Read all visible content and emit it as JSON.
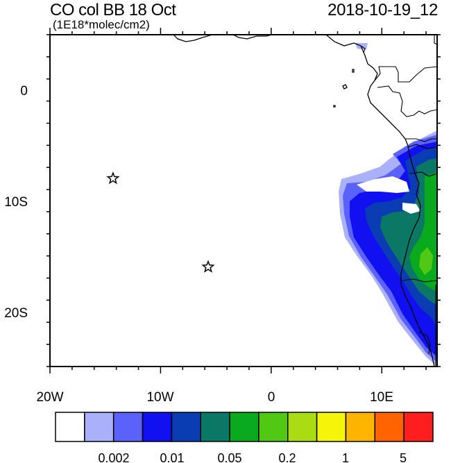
{
  "title": "CO col BB 18 Oct",
  "subtitle": "(1E18*molec/cm2)",
  "datetime": "2018-10-19_12",
  "axes": {
    "x_tick_labels": [
      "20W",
      "10W",
      "0",
      "10E"
    ],
    "y_tick_labels": [
      "0",
      "10S",
      "20S"
    ],
    "lon_range": [
      -20,
      15
    ],
    "lat_range": [
      -25,
      5
    ]
  },
  "markers": [
    {
      "name": "star-marker",
      "lon": -14.3,
      "lat": -8.0
    },
    {
      "name": "star-marker",
      "lon": -5.7,
      "lat": -16.0
    }
  ],
  "colorbar": {
    "colors": [
      "#ffffff",
      "#aab0fa",
      "#5a62fa",
      "#1010f0",
      "#0a3cb4",
      "#0a7864",
      "#0aaa1e",
      "#50c814",
      "#aadc14",
      "#f5f50a",
      "#ffb400",
      "#ff6400",
      "#ff1e1e"
    ],
    "labels": [
      "0.002",
      "0.01",
      "0.05",
      "0.2",
      "1",
      "5"
    ]
  }
}
